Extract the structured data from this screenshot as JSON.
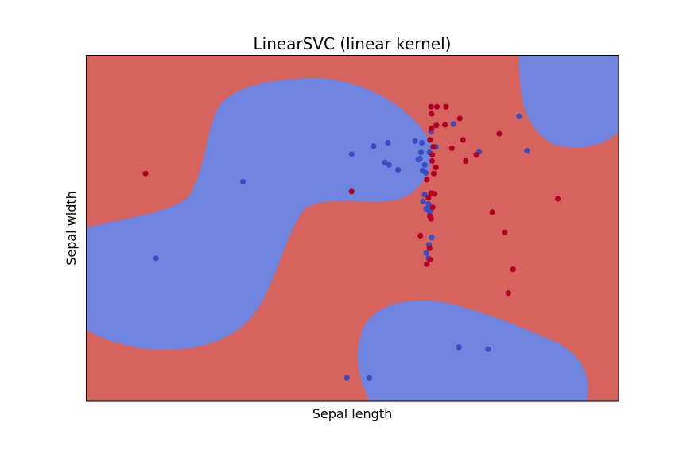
{
  "chart_data": {
    "type": "scatter",
    "title": "LinearSVC (linear kernel)",
    "xlabel": "Sepal length",
    "ylabel": "Sepal width",
    "xlim": [
      0,
      100
    ],
    "ylim": [
      0,
      100
    ],
    "ticks_visible": false,
    "grid": false,
    "legend": "none",
    "colors": {
      "region_class_0": "#d6635d",
      "region_class_1": "#7085e0",
      "point_class_0": "#b00026",
      "point_class_1": "#3a4cc0"
    },
    "series": [
      {
        "class": 1,
        "points": [
          [
            49.9,
            71.3
          ],
          [
            54.0,
            73.6
          ],
          [
            56.7,
            74.6
          ],
          [
            49.0,
            6.6
          ],
          [
            53.2,
            6.6
          ],
          [
            58.6,
            66.8
          ],
          [
            56.1,
            68.9
          ],
          [
            56.9,
            68.2
          ],
          [
            64.5,
            71.8
          ],
          [
            61.8,
            75.1
          ],
          [
            62.4,
            69.7
          ],
          [
            63.1,
            74.6
          ],
          [
            62.9,
            71.8
          ],
          [
            62.7,
            70.0
          ],
          [
            63.2,
            66.6
          ],
          [
            63.6,
            68.2
          ],
          [
            63.8,
            65.9
          ],
          [
            64.8,
            77.9
          ],
          [
            65.7,
            73.4
          ],
          [
            63.6,
            59.6
          ],
          [
            63.3,
            57.6
          ],
          [
            63.9,
            55.5
          ],
          [
            64.3,
            56.9
          ],
          [
            64.7,
            55.3
          ],
          [
            64.5,
            54.5
          ],
          [
            64.9,
            47.2
          ],
          [
            64.4,
            45.1
          ],
          [
            63.9,
            42.7
          ],
          [
            64.3,
            41.2
          ],
          [
            69.0,
            80.0
          ],
          [
            73.8,
            71.9
          ],
          [
            70.0,
            15.4
          ],
          [
            75.5,
            14.9
          ],
          [
            81.3,
            82.2
          ],
          [
            82.8,
            72.3
          ],
          [
            29.5,
            63.3
          ],
          [
            13.2,
            41.2
          ]
        ]
      },
      {
        "class": 0,
        "points": [
          [
            11.2,
            65.7
          ],
          [
            49.9,
            60.5
          ],
          [
            62.8,
            47.7
          ],
          [
            64.5,
            44.1
          ],
          [
            64.6,
            40.8
          ],
          [
            64.6,
            53.3
          ],
          [
            64.3,
            58.7
          ],
          [
            64.8,
            60.0
          ],
          [
            65.4,
            59.8
          ],
          [
            65.1,
            55.9
          ],
          [
            64.8,
            52.6
          ],
          [
            64.0,
            63.9
          ],
          [
            65.3,
            65.7
          ],
          [
            65.7,
            67.5
          ],
          [
            65.0,
            69.3
          ],
          [
            65.0,
            71.1
          ],
          [
            65.2,
            73.4
          ],
          [
            64.6,
            75.4
          ],
          [
            64.9,
            78.7
          ],
          [
            64.8,
            85.0
          ],
          [
            64.9,
            83.0
          ],
          [
            65.9,
            85.0
          ],
          [
            67.6,
            85.0
          ],
          [
            65.8,
            79.6
          ],
          [
            67.4,
            79.8
          ],
          [
            70.2,
            81.6
          ],
          [
            70.8,
            75.4
          ],
          [
            71.3,
            69.3
          ],
          [
            68.7,
            73.0
          ],
          [
            73.3,
            71.1
          ],
          [
            77.6,
            77.2
          ],
          [
            88.6,
            58.4
          ],
          [
            76.3,
            54.5
          ],
          [
            78.6,
            48.7
          ],
          [
            80.2,
            38.0
          ],
          [
            79.3,
            31.1
          ],
          [
            64.0,
            39.5
          ]
        ]
      }
    ]
  }
}
